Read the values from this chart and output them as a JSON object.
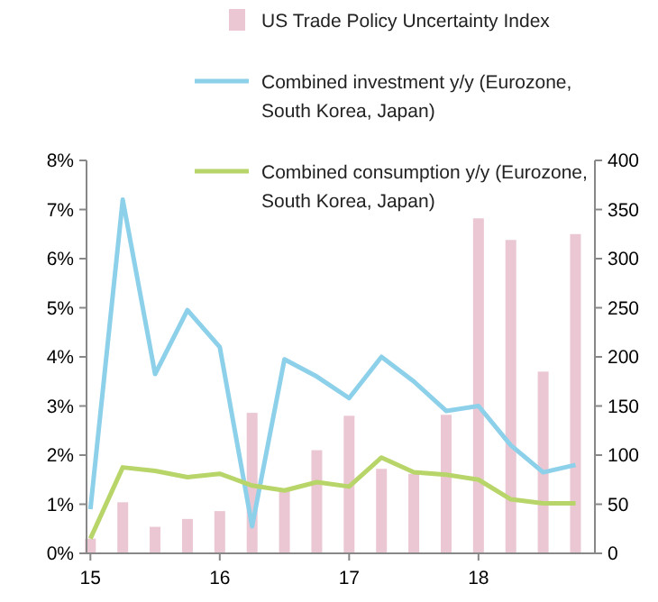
{
  "chart_data": {
    "type": "line",
    "x": [
      15,
      15.25,
      15.5,
      15.75,
      16,
      16.25,
      16.5,
      16.75,
      17,
      17.25,
      17.5,
      17.75,
      18,
      18.25,
      18.5,
      18.75
    ],
    "series": [
      {
        "name": "US Trade Policy Uncertainty Index",
        "type": "bar",
        "axis": "y2",
        "color": "#ebc7d3",
        "values": [
          15,
          52,
          27,
          35,
          43,
          143,
          65,
          105,
          140,
          86,
          81,
          141,
          341,
          319,
          185,
          325
        ]
      },
      {
        "name": "Combined investment y/y (Eurozone, South Korea, Japan)",
        "color": "#8dd0ea",
        "values": [
          0.9,
          7.2,
          3.65,
          4.95,
          4.2,
          0.55,
          3.95,
          3.6,
          3.16,
          4.0,
          3.5,
          2.9,
          3.0,
          2.2,
          1.65,
          1.8
        ]
      },
      {
        "name": "Combined consumption y/y (Eurozone, South Korea, Japan)",
        "color": "#b8d56a",
        "values": [
          0.3,
          1.75,
          1.68,
          1.55,
          1.62,
          1.38,
          1.28,
          1.45,
          1.36,
          1.95,
          1.65,
          1.6,
          1.5,
          1.1,
          1.02,
          1.02
        ]
      }
    ],
    "xlim": [
      14.97,
      18.9
    ],
    "xticks": [
      15,
      16,
      17,
      18
    ],
    "ylim": [
      0,
      8
    ],
    "yticks": [
      {
        "value": 0,
        "label": "0%"
      },
      {
        "value": 1,
        "label": "1%"
      },
      {
        "value": 2,
        "label": "2%"
      },
      {
        "value": 3,
        "label": "3%"
      },
      {
        "value": 4,
        "label": "4%"
      },
      {
        "value": 5,
        "label": "5%"
      },
      {
        "value": 6,
        "label": "6%"
      },
      {
        "value": 7,
        "label": "7%"
      },
      {
        "value": 8,
        "label": "8%"
      }
    ],
    "y2lim": [
      0,
      400
    ],
    "y2ticks": [
      0,
      50,
      100,
      150,
      200,
      250,
      300,
      350,
      400
    ],
    "grid": false,
    "legend": "top",
    "marker": "none",
    "line_style": "solid"
  }
}
